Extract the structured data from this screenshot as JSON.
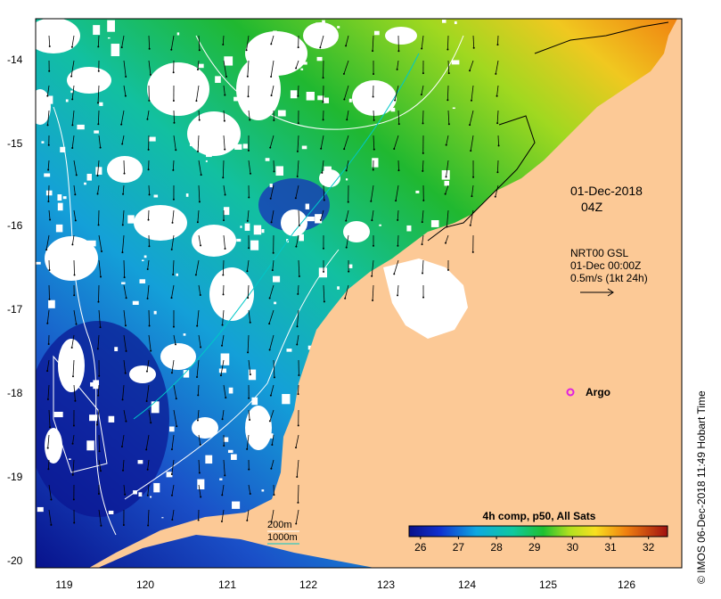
{
  "map": {
    "timestamp": {
      "date": "01-Dec-2018",
      "time": "04Z"
    },
    "current_info": {
      "product": "NRT00 GSL",
      "date": "01-Dec 00:00Z",
      "scale": "0.5m/s (1kt 24h)"
    },
    "colorbar": {
      "title": "4h comp, p50, All Sats",
      "ticks": [
        "26",
        "27",
        "28",
        "29",
        "30",
        "31",
        "32"
      ],
      "range": [
        25.7,
        32.5
      ]
    },
    "contours": {
      "shallow_label": "200m",
      "deep_label": "1000m",
      "shallow_color": "#ffffff",
      "deep_color": "#00c8c8"
    },
    "argo": {
      "label": "Argo",
      "color": "#e020e0"
    },
    "credit": "© IMOS 06-Dec-2018 11:49 Hobart Time",
    "colors": {
      "land": "#fcc996",
      "cloud": "#ffffff"
    },
    "x_axis": {
      "ticks": [
        "119",
        "120",
        "121",
        "122",
        "123",
        "124",
        "125",
        "126"
      ]
    },
    "y_axis": {
      "ticks": [
        "-14",
        "-15",
        "-16",
        "-17",
        "-18",
        "-19",
        "-20"
      ]
    }
  }
}
